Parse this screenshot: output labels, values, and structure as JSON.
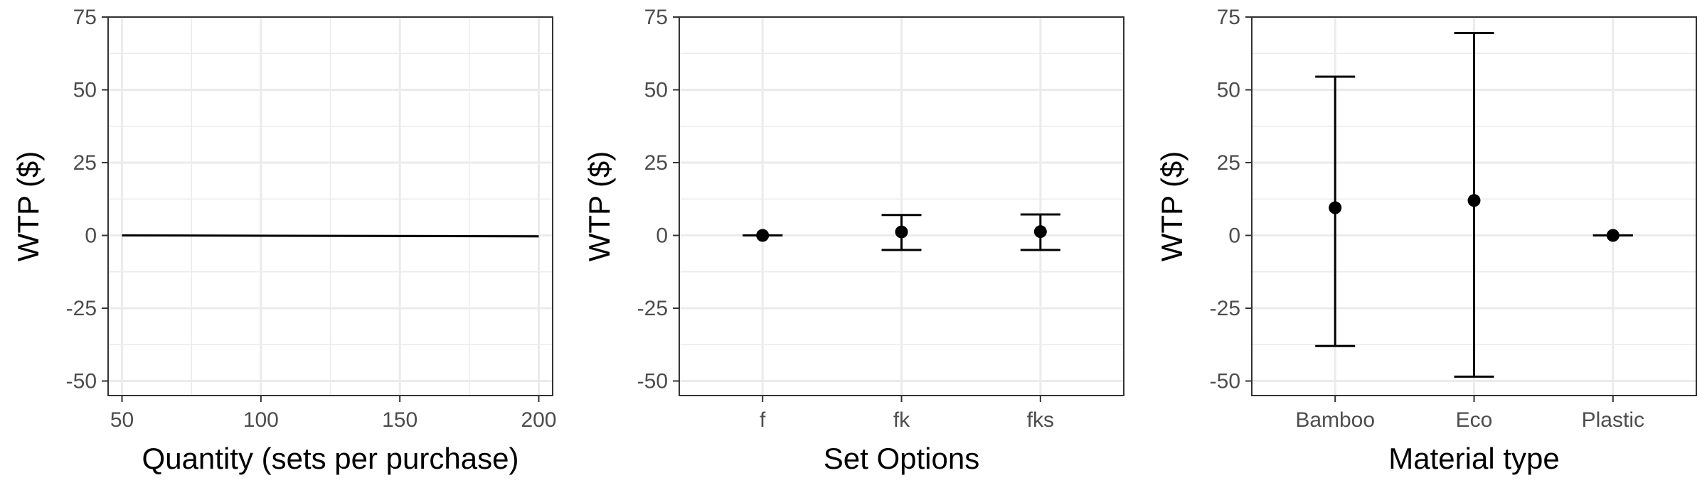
{
  "chart_data": [
    {
      "type": "line",
      "xlabel": "Quantity (sets per purchase)",
      "ylabel": "WTP ($)",
      "xlim": [
        45,
        205
      ],
      "ylim": [
        -55,
        75
      ],
      "xticks": [
        50,
        100,
        150,
        200
      ],
      "xtick_labels": [
        "50",
        "100",
        "150",
        "200"
      ],
      "yticks": [
        -50,
        -25,
        0,
        25,
        50,
        75
      ],
      "ytick_labels": [
        "-50",
        "-25",
        "0",
        "25",
        "50",
        "75"
      ],
      "grid": true,
      "series": [
        {
          "x": [
            50,
            200
          ],
          "y": [
            0,
            -0.3
          ],
          "lower": [
            0,
            -0.8
          ],
          "upper": [
            0,
            0.2
          ]
        }
      ]
    },
    {
      "type": "scatter",
      "xlabel": "Set Options",
      "ylabel": "WTP ($)",
      "ylim": [
        -55,
        75
      ],
      "categories": [
        "f",
        "fk",
        "fks"
      ],
      "yticks": [
        -50,
        -25,
        0,
        25,
        50,
        75
      ],
      "ytick_labels": [
        "-50",
        "-25",
        "0",
        "25",
        "50",
        "75"
      ],
      "grid": true,
      "values": [
        0,
        1.2,
        1.3
      ],
      "lower": [
        0,
        -5,
        -5
      ],
      "upper": [
        0,
        7,
        7.2
      ]
    },
    {
      "type": "scatter",
      "xlabel": "Material type",
      "ylabel": "WTP ($)",
      "ylim": [
        -55,
        75
      ],
      "categories": [
        "Bamboo",
        "Eco",
        "Plastic"
      ],
      "yticks": [
        -50,
        -25,
        0,
        25,
        50,
        75
      ],
      "ytick_labels": [
        "-50",
        "-25",
        "0",
        "25",
        "50",
        "75"
      ],
      "grid": true,
      "values": [
        9.5,
        12,
        0
      ],
      "lower": [
        -38,
        -48.5,
        0
      ],
      "upper": [
        54.5,
        69.5,
        0
      ]
    }
  ]
}
